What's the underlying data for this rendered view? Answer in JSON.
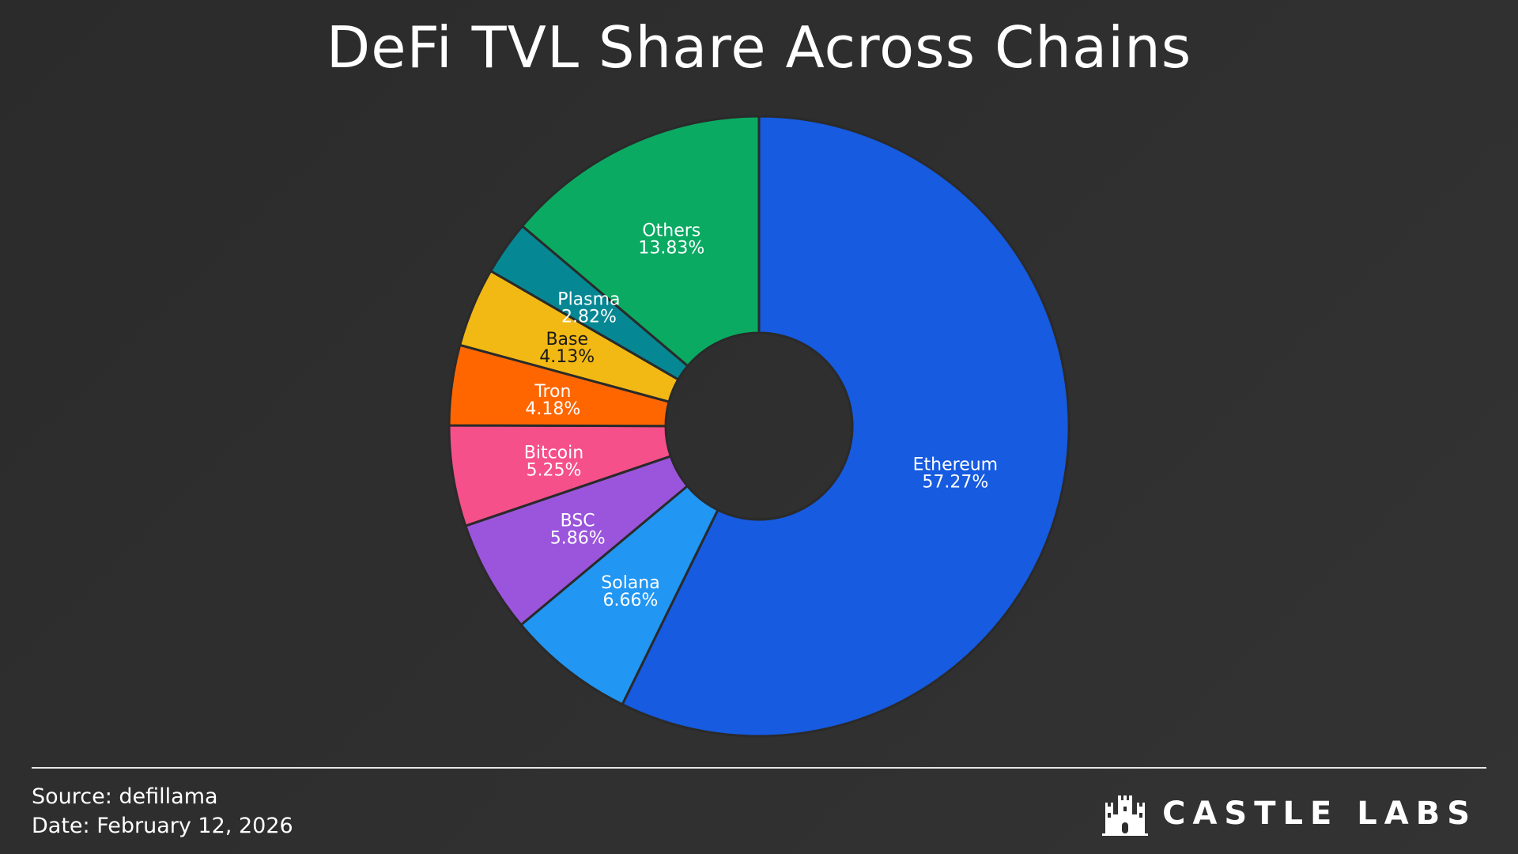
{
  "chart_data": {
    "type": "pie",
    "donut": true,
    "title": "DeFi TVL Share Across Chains",
    "slices": [
      {
        "label": "Ethereum",
        "value": 57.27,
        "value_label": "57.27%",
        "color": "#165be0",
        "text_color": "#ffffff"
      },
      {
        "label": "Solana",
        "value": 6.66,
        "value_label": "6.66%",
        "color": "#2196f3",
        "text_color": "#ffffff"
      },
      {
        "label": "BSC",
        "value": 5.86,
        "value_label": "5.86%",
        "color": "#9b55dc",
        "text_color": "#ffffff"
      },
      {
        "label": "Bitcoin",
        "value": 5.25,
        "value_label": "5.25%",
        "color": "#f5508a",
        "text_color": "#ffffff"
      },
      {
        "label": "Tron",
        "value": 4.18,
        "value_label": "4.18%",
        "color": "#ff6600",
        "text_color": "#ffffff"
      },
      {
        "label": "Base",
        "value": 4.13,
        "value_label": "4.13%",
        "color": "#f2b914",
        "text_color": "#1a1a1a"
      },
      {
        "label": "Plasma",
        "value": 2.82,
        "value_label": "2.82%",
        "color": "#068894",
        "text_color": "#ffffff"
      },
      {
        "label": "Others",
        "value": 13.83,
        "value_label": "13.83%",
        "color": "#0aaa63",
        "text_color": "#ffffff"
      }
    ],
    "direction": "clockwise",
    "start": "top"
  },
  "footer": {
    "source": "Source: defillama",
    "date": "Date: February 12, 2026"
  },
  "brand": {
    "name": "CASTLE LABS",
    "icon": "castle-icon"
  },
  "colors": {
    "background": "#2e2e2e",
    "slice_border": "#2a2a2a"
  }
}
